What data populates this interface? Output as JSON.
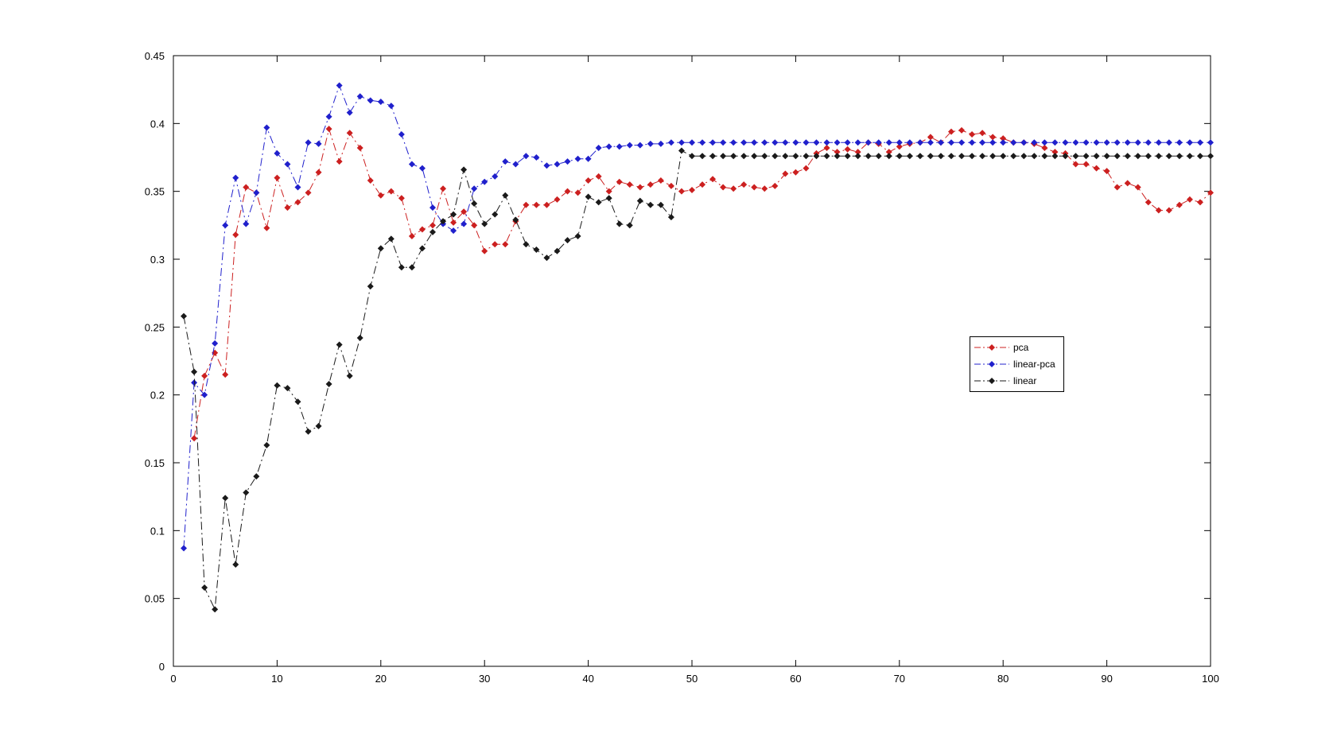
{
  "page": {
    "background": "#ffffff"
  },
  "legend": {
    "entries": [
      {
        "label": "pca"
      },
      {
        "label": "linear-pca"
      },
      {
        "label": "linear"
      }
    ]
  },
  "chart_data": {
    "type": "line",
    "title": "",
    "xlabel": "",
    "ylabel": "",
    "xlim": [
      0,
      100
    ],
    "ylim": [
      0,
      0.45
    ],
    "grid": false,
    "legend_position": "inside-right",
    "line_style": "dash-dot",
    "marker": "diamond",
    "axis_color": "#000000",
    "xticks": [
      0,
      10,
      20,
      30,
      40,
      50,
      60,
      70,
      80,
      90,
      100
    ],
    "xtick_labels": [
      "0",
      "10",
      "20",
      "30",
      "40",
      "50",
      "60",
      "70",
      "80",
      "90",
      "100"
    ],
    "yticks": [
      0,
      0.05,
      0.1,
      0.15,
      0.2,
      0.25,
      0.3,
      0.35,
      0.4,
      0.45
    ],
    "ytick_labels": [
      "0",
      "0.05",
      "0.1",
      "0.15",
      "0.2",
      "0.25",
      "0.3",
      "0.35",
      "0.4",
      "0.45"
    ],
    "x": [
      1,
      2,
      3,
      4,
      5,
      6,
      7,
      8,
      9,
      10,
      11,
      12,
      13,
      14,
      15,
      16,
      17,
      18,
      19,
      20,
      21,
      22,
      23,
      24,
      25,
      26,
      27,
      28,
      29,
      30,
      31,
      32,
      33,
      34,
      35,
      36,
      37,
      38,
      39,
      40,
      41,
      42,
      43,
      44,
      45,
      46,
      47,
      48,
      49,
      50,
      51,
      52,
      53,
      54,
      55,
      56,
      57,
      58,
      59,
      60,
      61,
      62,
      63,
      64,
      65,
      66,
      67,
      68,
      69,
      70,
      71,
      72,
      73,
      74,
      75,
      76,
      77,
      78,
      79,
      80,
      81,
      82,
      83,
      84,
      85,
      86,
      87,
      88,
      89,
      90,
      91,
      92,
      93,
      94,
      95,
      96,
      97,
      98,
      99,
      100
    ],
    "series": [
      {
        "name": "pca",
        "color": "#cc2020",
        "values": [
          null,
          0.168,
          0.214,
          0.231,
          0.215,
          0.318,
          0.353,
          0.349,
          0.323,
          0.36,
          0.338,
          0.342,
          0.349,
          0.364,
          0.396,
          0.372,
          0.393,
          0.382,
          0.358,
          0.347,
          0.35,
          0.345,
          0.317,
          0.322,
          0.325,
          0.352,
          0.327,
          0.335,
          0.325,
          0.306,
          0.311,
          0.311,
          0.328,
          0.34,
          0.34,
          0.34,
          0.344,
          0.35,
          0.349,
          0.358,
          0.361,
          0.35,
          0.357,
          0.355,
          0.353,
          0.355,
          0.358,
          0.354,
          0.35,
          0.351,
          0.355,
          0.359,
          0.353,
          0.352,
          0.355,
          0.353,
          0.352,
          0.354,
          0.363,
          0.364,
          0.367,
          0.378,
          0.382,
          0.379,
          0.381,
          0.379,
          0.386,
          0.385,
          0.379,
          0.383,
          0.385,
          0.386,
          0.39,
          0.386,
          0.394,
          0.395,
          0.392,
          0.393,
          0.39,
          0.389,
          0.386,
          0.386,
          0.385,
          0.382,
          0.379,
          0.378,
          0.37,
          0.37,
          0.367,
          0.365,
          0.353,
          0.356,
          0.353,
          0.342,
          0.336,
          0.336,
          0.34,
          0.344,
          0.342,
          0.349
        ]
      },
      {
        "name": "linear-pca",
        "color": "#2020cc",
        "values": [
          0.087,
          0.209,
          0.2,
          0.238,
          0.325,
          0.36,
          0.326,
          0.349,
          0.397,
          0.378,
          0.37,
          0.353,
          0.386,
          0.385,
          0.405,
          0.428,
          0.408,
          0.42,
          0.417,
          0.416,
          0.413,
          0.392,
          0.37,
          0.367,
          0.338,
          0.326,
          0.321,
          0.326,
          0.352,
          0.357,
          0.361,
          0.372,
          0.37,
          0.376,
          0.375,
          0.369,
          0.37,
          0.372,
          0.374,
          0.374,
          0.382,
          0.383,
          0.383,
          0.384,
          0.384,
          0.385,
          0.385,
          0.386,
          0.386,
          0.386,
          0.386,
          0.386,
          0.386,
          0.386,
          0.386,
          0.386,
          0.386,
          0.386,
          0.386,
          0.386,
          0.386,
          0.386,
          0.386,
          0.386,
          0.386,
          0.386,
          0.386,
          0.386,
          0.386,
          0.386,
          0.386,
          0.386,
          0.386,
          0.386,
          0.386,
          0.386,
          0.386,
          0.386,
          0.386,
          0.386,
          0.386,
          0.386,
          0.386,
          0.386,
          0.386,
          0.386,
          0.386,
          0.386,
          0.386,
          0.386,
          0.386,
          0.386,
          0.386,
          0.386,
          0.386,
          0.386,
          0.386,
          0.386,
          0.386,
          0.386
        ]
      },
      {
        "name": "linear",
        "color": "#1a1a1a",
        "values": [
          0.258,
          0.217,
          0.058,
          0.042,
          0.124,
          0.075,
          0.128,
          0.14,
          0.163,
          0.207,
          0.205,
          0.195,
          0.173,
          0.177,
          0.208,
          0.237,
          0.214,
          0.242,
          0.28,
          0.308,
          0.315,
          0.294,
          0.294,
          0.308,
          0.32,
          0.328,
          0.333,
          0.366,
          0.341,
          0.326,
          0.333,
          0.347,
          0.329,
          0.311,
          0.307,
          0.301,
          0.306,
          0.314,
          0.317,
          0.346,
          0.342,
          0.345,
          0.326,
          0.325,
          0.343,
          0.34,
          0.34,
          0.331,
          0.38,
          0.376,
          0.376,
          0.376,
          0.376,
          0.376,
          0.376,
          0.376,
          0.376,
          0.376,
          0.376,
          0.376,
          0.376,
          0.376,
          0.376,
          0.376,
          0.376,
          0.376,
          0.376,
          0.376,
          0.376,
          0.376,
          0.376,
          0.376,
          0.376,
          0.376,
          0.376,
          0.376,
          0.376,
          0.376,
          0.376,
          0.376,
          0.376,
          0.376,
          0.376,
          0.376,
          0.376,
          0.376,
          0.376,
          0.376,
          0.376,
          0.376,
          0.376,
          0.376,
          0.376,
          0.376,
          0.376,
          0.376,
          0.376,
          0.376,
          0.376,
          0.376
        ]
      }
    ]
  }
}
